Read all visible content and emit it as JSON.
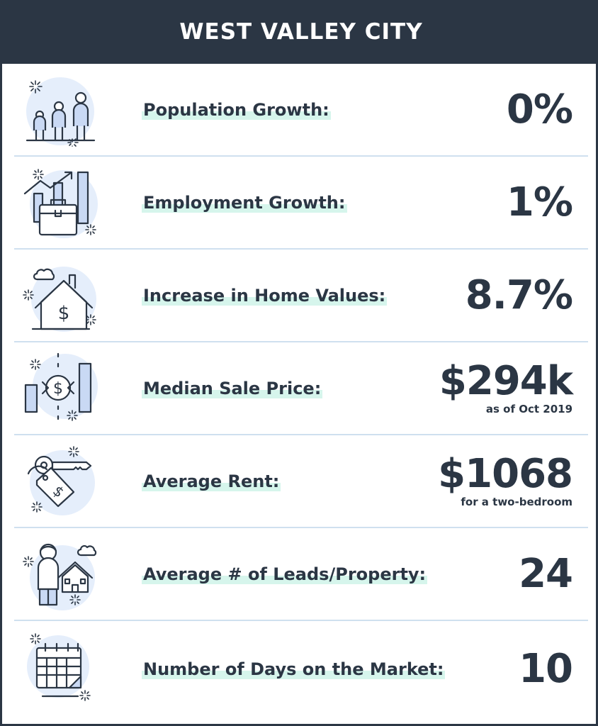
{
  "title": "WEST VALLEY CITY",
  "colors": {
    "header": "#2b3644",
    "text": "#2b3644",
    "highlight": "#d6f5ec",
    "divider": "#cfe0ef",
    "icon_fill": "#c9d9f4"
  },
  "stats": [
    {
      "icon": "people-icon",
      "label": "Population Growth:",
      "value": "0%",
      "note": ""
    },
    {
      "icon": "briefcase-growth-chart-icon",
      "label": "Employment Growth:",
      "value": "1%",
      "note": ""
    },
    {
      "icon": "house-dollar-icon",
      "label": "Increase in Home Values:",
      "value": "8.7%",
      "note": ""
    },
    {
      "icon": "bar-chart-dollar-icon",
      "label": "Median Sale Price:",
      "value": "$294k",
      "note": "as of Oct 2019"
    },
    {
      "icon": "key-price-tag-icon",
      "label": "Average Rent:",
      "value": "$1068",
      "note": "for a two-bedroom"
    },
    {
      "icon": "person-house-icon",
      "label": "Average # of Leads/Property:",
      "value": "24",
      "note": ""
    },
    {
      "icon": "calendar-icon",
      "label": "Number of Days on the Market:",
      "value": "10",
      "note": ""
    }
  ]
}
